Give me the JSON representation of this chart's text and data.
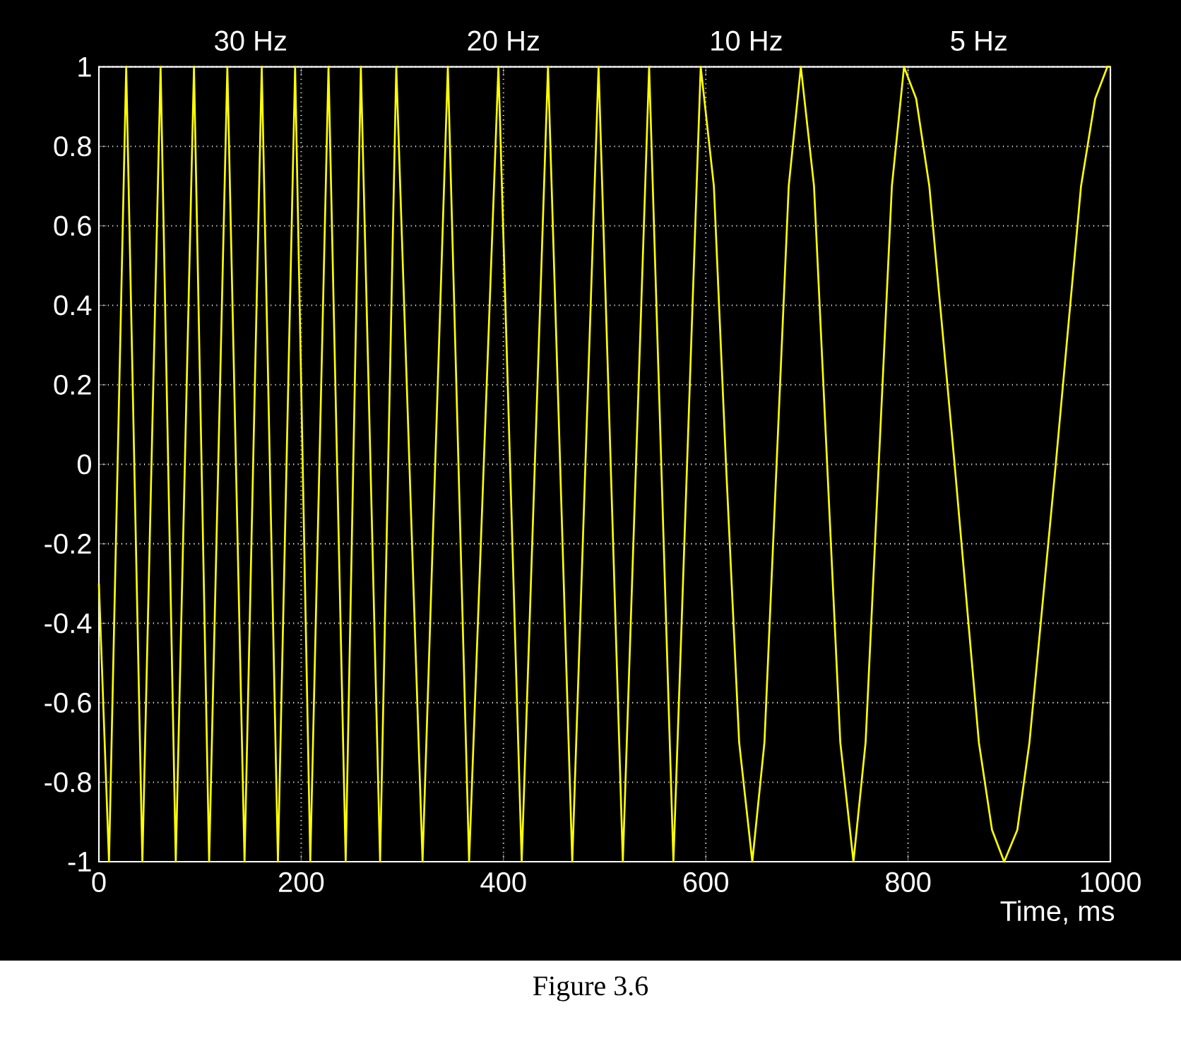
{
  "chart_data": {
    "type": "line",
    "xlabel": "Time, ms",
    "xlim": [
      0,
      1000
    ],
    "xticks": [
      0,
      200,
      400,
      600,
      800,
      1000
    ],
    "ylim": [
      -1,
      1
    ],
    "yticks": [
      -1,
      -0.8,
      -0.6,
      -0.4,
      -0.2,
      0,
      0.2,
      0.4,
      0.6,
      0.8,
      1
    ],
    "grid": true,
    "marker": "none",
    "line_style": "solid",
    "annotations": [
      "30 Hz",
      "20 Hz",
      "10 Hz",
      "5 Hz",
      "Figure 3.6"
    ],
    "series": [
      {
        "color": "#ffff00",
        "x": [
          0,
          10,
          27,
          43,
          61,
          76,
          94,
          109,
          127,
          144,
          161,
          177,
          194,
          209,
          227,
          244,
          259,
          278,
          294,
          320,
          345,
          366,
          395,
          418,
          444,
          468,
          494,
          518,
          544,
          568,
          595,
          608,
          620,
          633,
          646,
          658,
          670,
          682,
          694,
          707,
          720,
          733,
          746,
          758,
          771,
          784,
          796,
          808,
          821,
          846,
          870,
          883,
          895,
          908,
          920,
          946,
          971,
          985,
          997,
          1000
        ],
        "values": [
          -0.3,
          -1,
          1,
          -1,
          1,
          -1,
          1,
          -1,
          1,
          -1,
          1,
          -1,
          1,
          -1,
          1,
          -1,
          1,
          -1,
          1,
          -1,
          1,
          -1,
          1,
          -1,
          1,
          -1,
          1,
          -1,
          1,
          -1,
          1,
          0.7,
          0,
          -0.7,
          -1,
          -0.7,
          0,
          0.7,
          1,
          0.7,
          0,
          -0.7,
          -1,
          -0.7,
          0,
          0.7,
          1,
          0.92,
          0.7,
          0,
          -0.7,
          -0.92,
          -1,
          -0.92,
          -0.7,
          0,
          0.7,
          0.92,
          1,
          1
        ]
      }
    ]
  }
}
